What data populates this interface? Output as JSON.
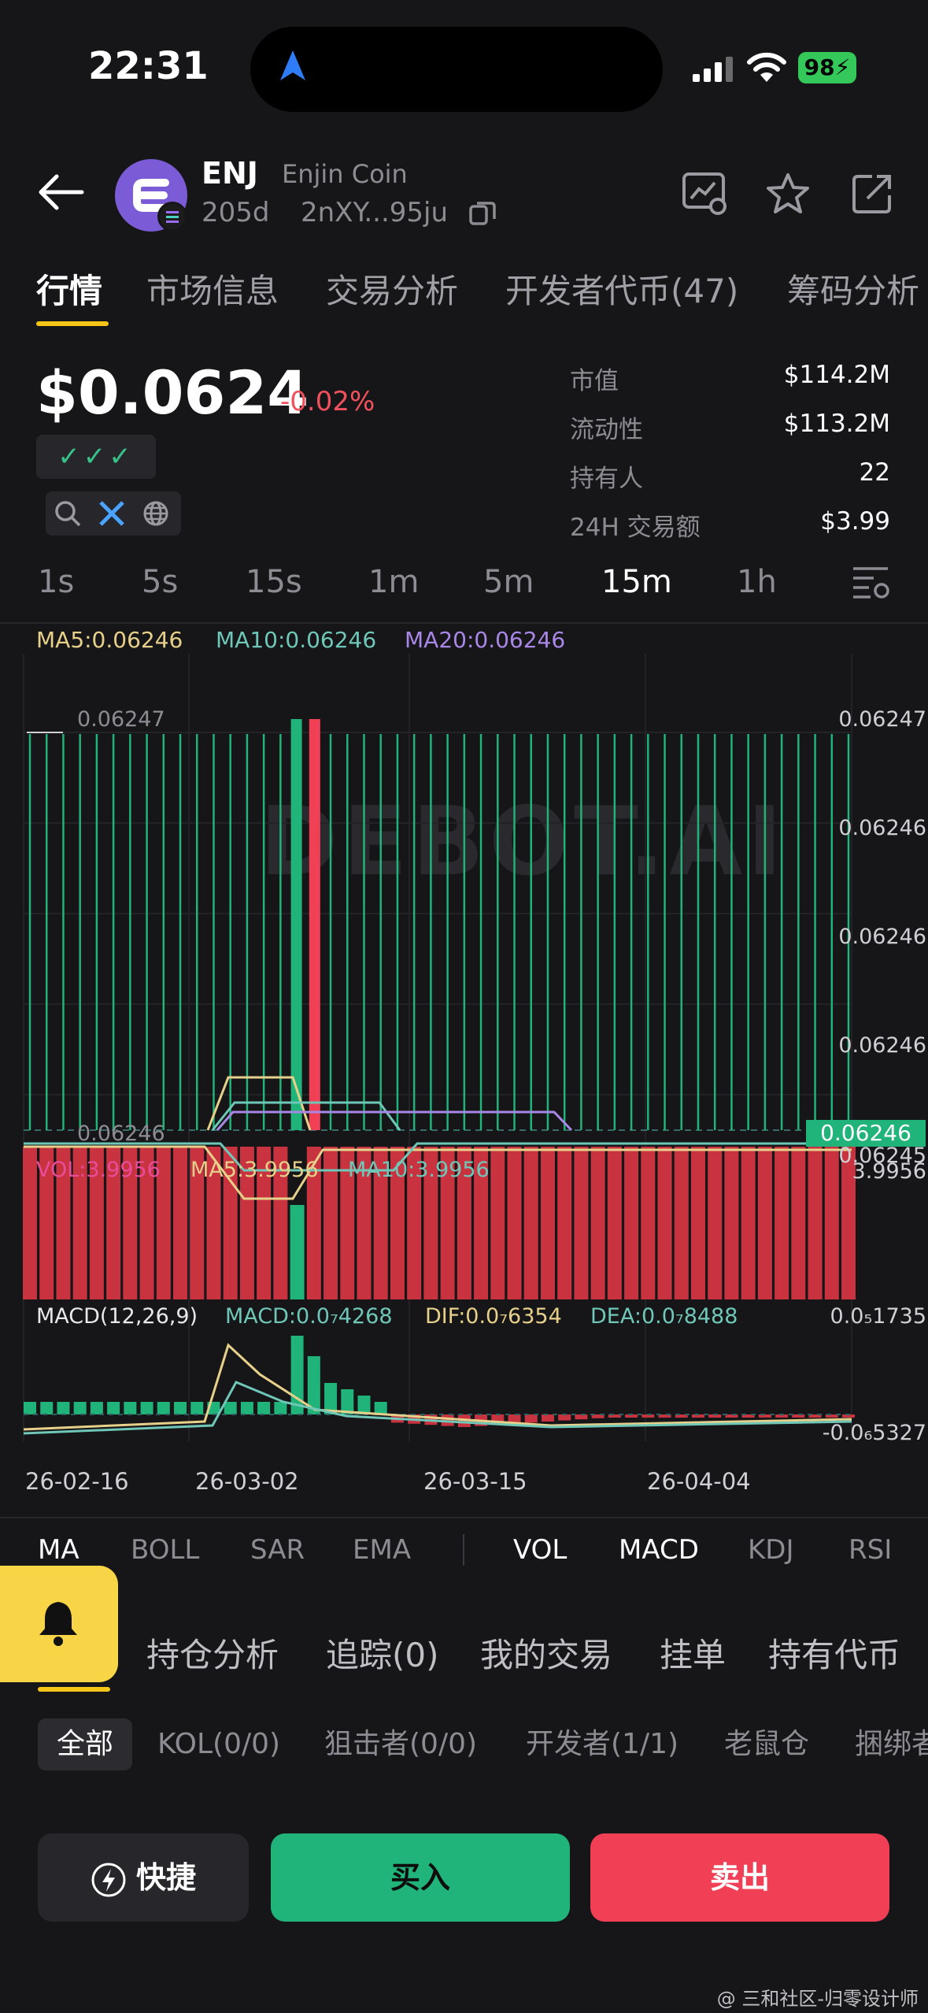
{
  "status": {
    "time": "22:31",
    "battery": "98"
  },
  "token": {
    "symbol": "ENJ",
    "name": "Enjin Coin",
    "age": "205d",
    "address": "2nXY...95ju"
  },
  "tabs": [
    "行情",
    "市场信息",
    "交易分析",
    "开发者代币(47)",
    "筹码分析"
  ],
  "price": {
    "value": "$0.0624",
    "change": "-0.02%",
    "checks": "✓✓✓"
  },
  "stats": [
    {
      "label": "市值",
      "value": "$114.2M"
    },
    {
      "label": "流动性",
      "value": "$113.2M"
    },
    {
      "label": "持有人",
      "value": "22"
    },
    {
      "label": "24H 交易额",
      "value": "$3.99"
    }
  ],
  "intervals": [
    "1s",
    "5s",
    "15s",
    "1m",
    "5m",
    "15m",
    "1h"
  ],
  "active_interval": "15m",
  "ma_legend": {
    "ma5": "MA5:0.06246",
    "ma10": "MA10:0.06246",
    "ma20": "MA20:0.06246"
  },
  "watermark": "DEBOT.AI",
  "price_axis": {
    "right": [
      "0.06247",
      "0.06246",
      "0.06246",
      "0.06246",
      "0.06245"
    ],
    "left_top": "0.06247",
    "left_bottom": "0.06246",
    "current_tag": "0.06246"
  },
  "vol_legend": {
    "vol": "VOL:3.9956",
    "ma5": "MA5:3.9956",
    "ma10": "MA10:3.9956",
    "axis_top": "3.9956"
  },
  "macd_legend": {
    "title": "MACD(12,26,9)",
    "macd": "MACD:0.0₇4268",
    "dif": "DIF:0.0₇6354",
    "dea": "DEA:0.0₇8488",
    "axis_top": "0.0₅1735",
    "axis_bottom": "-0.0₆5327"
  },
  "dates": [
    "26-02-16",
    "26-03-02",
    "26-03-15",
    "26-04-04"
  ],
  "indicators_main": [
    "MA",
    "BOLL",
    "SAR",
    "EMA"
  ],
  "indicators_sub": [
    "VOL",
    "MACD",
    "KDJ",
    "RSI"
  ],
  "sub_tabs": [
    "持仓分析",
    "追踪(0)",
    "我的交易",
    "挂单",
    "持有代币"
  ],
  "chips": [
    "全部",
    "KOL(0/0)",
    "狙击者(0/0)",
    "开发者(1/1)",
    "老鼠仓",
    "捆绑者"
  ],
  "buttons": {
    "quick": "快捷",
    "buy": "买入",
    "sell": "卖出"
  },
  "footer": "@ 三和社区-归零设计师",
  "colors": {
    "up": "#20b37a",
    "down": "#f13f55",
    "accent": "#f5c518",
    "ma5": "#e6d08a",
    "ma10": "#6fc7b8",
    "ma20": "#a987e6"
  }
}
